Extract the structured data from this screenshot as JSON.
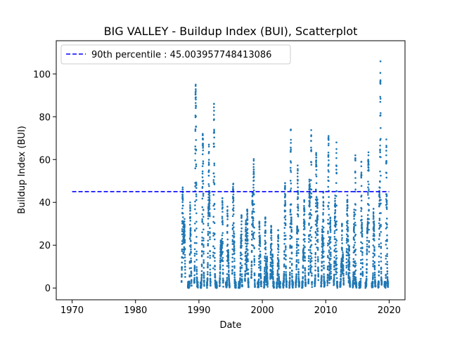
{
  "chart_data": {
    "type": "scatter",
    "title": "BIG VALLEY - Buildup Index (BUI), Scatterplot",
    "xlabel": "Date",
    "ylabel": "Buildup Index (BUI)",
    "xlim": [
      1967.5,
      2022.5
    ],
    "ylim": [
      -5.5,
      115.5
    ],
    "x_ticks": [
      1970,
      1980,
      1990,
      2000,
      2010,
      2020
    ],
    "y_ticks": [
      0,
      20,
      40,
      60,
      80,
      100
    ],
    "grid": false,
    "legend_position": "top-left",
    "point_color": "#1f77b4",
    "reference_line": {
      "label": "90th percentile : 45.003957748413086",
      "value": 45.003957748413086,
      "x_start": 1970,
      "x_end": 2020,
      "color": "#0000ff",
      "style": "dashed"
    },
    "seasons": [
      {
        "year": 1987,
        "peak": 47
      },
      {
        "year": 1988,
        "peak": 40
      },
      {
        "year": 1989,
        "peak": 95
      },
      {
        "year": 1990,
        "peak": 72
      },
      {
        "year": 1991,
        "peak": 67
      },
      {
        "year": 1992,
        "peak": 86
      },
      {
        "year": 1993,
        "peak": 42
      },
      {
        "year": 1994,
        "peak": 38
      },
      {
        "year": 1995,
        "peak": 51
      },
      {
        "year": 1996,
        "peak": 34
      },
      {
        "year": 1997,
        "peak": 38
      },
      {
        "year": 1998,
        "peak": 61
      },
      {
        "year": 1999,
        "peak": 31
      },
      {
        "year": 2000,
        "peak": 33
      },
      {
        "year": 2001,
        "peak": 29
      },
      {
        "year": 2002,
        "peak": 27
      },
      {
        "year": 2003,
        "peak": 49
      },
      {
        "year": 2004,
        "peak": 74
      },
      {
        "year": 2005,
        "peak": 58
      },
      {
        "year": 2006,
        "peak": 41
      },
      {
        "year": 2007,
        "peak": 75
      },
      {
        "year": 2008,
        "peak": 64
      },
      {
        "year": 2009,
        "peak": 45
      },
      {
        "year": 2010,
        "peak": 71
      },
      {
        "year": 2011,
        "peak": 68
      },
      {
        "year": 2012,
        "peak": 30
      },
      {
        "year": 2013,
        "peak": 44
      },
      {
        "year": 2014,
        "peak": 62
      },
      {
        "year": 2015,
        "peak": 59
      },
      {
        "year": 2016,
        "peak": 64
      },
      {
        "year": 2017,
        "peak": 37
      },
      {
        "year": 2018,
        "peak": 110
      },
      {
        "year": 2019,
        "peak": 70
      }
    ]
  }
}
